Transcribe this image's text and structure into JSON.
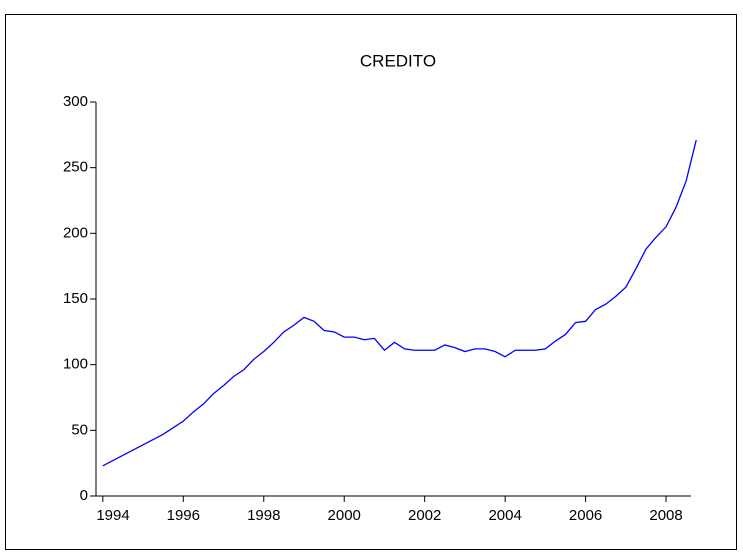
{
  "chart_data": {
    "type": "line",
    "title": "CREDITO",
    "x": [
      1994,
      1994.25,
      1994.5,
      1994.75,
      1995,
      1995.25,
      1995.5,
      1995.75,
      1996,
      1996.25,
      1996.5,
      1996.75,
      1997,
      1997.25,
      1997.5,
      1997.75,
      1998,
      1998.25,
      1998.5,
      1998.75,
      1999,
      1999.25,
      1999.5,
      1999.75,
      2000,
      2000.25,
      2000.5,
      2000.75,
      2001,
      2001.25,
      2001.5,
      2001.75,
      2002,
      2002.25,
      2002.5,
      2002.75,
      2003,
      2003.25,
      2003.5,
      2003.75,
      2004,
      2004.25,
      2004.5,
      2004.75,
      2005,
      2005.25,
      2005.5,
      2005.75,
      2006,
      2006.25,
      2006.5,
      2006.75,
      2007,
      2007.25,
      2007.5,
      2007.75,
      2008,
      2008.25,
      2008.5,
      2008.75
    ],
    "series": [
      {
        "name": "CREDITO",
        "color": "#0000ff",
        "values": [
          23,
          27,
          31,
          35,
          39,
          43,
          47,
          52,
          57,
          64,
          70,
          78,
          84,
          91,
          96,
          104,
          110,
          117,
          125,
          130,
          136,
          133,
          126,
          125,
          121,
          121,
          119,
          120,
          111,
          117,
          112,
          111,
          111,
          111,
          115,
          113,
          110,
          112,
          112,
          110,
          106,
          111,
          111,
          111,
          112,
          118,
          123,
          132,
          133,
          142,
          146,
          152,
          159,
          173,
          188,
          197,
          205,
          220,
          240,
          271
        ]
      }
    ],
    "xlim": [
      1993.83,
      2008.62
    ],
    "xticks": [
      1994,
      1996,
      1998,
      2000,
      2002,
      2004,
      2006,
      2008
    ],
    "ylim": [
      0,
      300
    ],
    "yticks": [
      0,
      50,
      100,
      150,
      200,
      250,
      300
    ]
  }
}
